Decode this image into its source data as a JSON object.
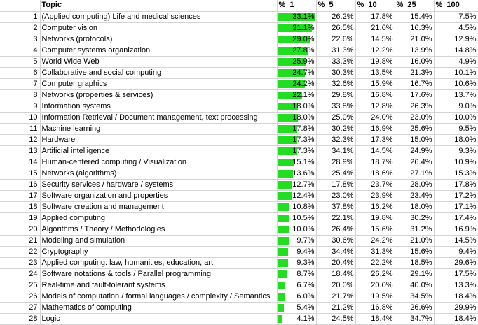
{
  "columns": [
    "Topic",
    "%_1",
    "%_5",
    "%_10",
    "%_25",
    "%_100"
  ],
  "bar_color": "#22dd22",
  "bar_max": 33.1,
  "rows": [
    {
      "n": "1",
      "topic": "(Applied computing) Life and medical sciences",
      "p1": 33.1,
      "v": [
        "33.1%",
        "26.2%",
        "17.8%",
        "15.4%",
        "7.5%"
      ]
    },
    {
      "n": "2",
      "topic": "Computer vision",
      "p1": 31.1,
      "v": [
        "31.1%",
        "26.5%",
        "21.6%",
        "16.3%",
        "4.5%"
      ]
    },
    {
      "n": "3",
      "topic": "Networks (protocols)",
      "p1": 29.0,
      "v": [
        "29.0%",
        "22.6%",
        "14.5%",
        "21.0%",
        "12.9%"
      ]
    },
    {
      "n": "4",
      "topic": "Computer systems organization",
      "p1": 27.8,
      "v": [
        "27.8%",
        "31.3%",
        "12.2%",
        "13.9%",
        "14.8%"
      ]
    },
    {
      "n": "5",
      "topic": "World Wide Web",
      "p1": 25.9,
      "v": [
        "25.9%",
        "33.3%",
        "19.8%",
        "16.0%",
        "4.9%"
      ]
    },
    {
      "n": "6",
      "topic": "Collaborative and social computing",
      "p1": 24.7,
      "v": [
        "24.7%",
        "30.3%",
        "13.5%",
        "21.3%",
        "10.1%"
      ]
    },
    {
      "n": "7",
      "topic": "Computer graphics",
      "p1": 24.2,
      "v": [
        "24.2%",
        "32.6%",
        "15.9%",
        "16.7%",
        "10.6%"
      ]
    },
    {
      "n": "8",
      "topic": "Networks (properties & services)",
      "p1": 22.1,
      "v": [
        "22.1%",
        "29.8%",
        "16.8%",
        "17.6%",
        "13.7%"
      ]
    },
    {
      "n": "9",
      "topic": "Information systems",
      "p1": 18.0,
      "v": [
        "18.0%",
        "33.8%",
        "12.8%",
        "26.3%",
        "9.0%"
      ]
    },
    {
      "n": "10",
      "topic": "Information Retrieval / Document management, text processing",
      "p1": 18.0,
      "v": [
        "18.0%",
        "25.0%",
        "24.0%",
        "23.0%",
        "10.0%"
      ]
    },
    {
      "n": "11",
      "topic": "Machine learning",
      "p1": 17.8,
      "v": [
        "17.8%",
        "30.2%",
        "16.9%",
        "25.6%",
        "9.5%"
      ]
    },
    {
      "n": "12",
      "topic": "Hardware",
      "p1": 17.3,
      "v": [
        "17.3%",
        "32.3%",
        "17.3%",
        "15.0%",
        "18.0%"
      ]
    },
    {
      "n": "13",
      "topic": "Artificial intelligence",
      "p1": 17.3,
      "v": [
        "17.3%",
        "34.1%",
        "14.5%",
        "24.9%",
        "9.3%"
      ]
    },
    {
      "n": "14",
      "topic": "Human-centered computing / Visualization",
      "p1": 15.1,
      "v": [
        "15.1%",
        "28.9%",
        "18.7%",
        "26.4%",
        "10.9%"
      ]
    },
    {
      "n": "15",
      "topic": "Networks (algorithms)",
      "p1": 13.6,
      "v": [
        "13.6%",
        "25.4%",
        "18.6%",
        "27.1%",
        "15.3%"
      ]
    },
    {
      "n": "16",
      "topic": "Security services / hardware / systems",
      "p1": 12.7,
      "v": [
        "12.7%",
        "17.8%",
        "23.7%",
        "28.0%",
        "17.8%"
      ]
    },
    {
      "n": "17",
      "topic": "Software organization and properties",
      "p1": 12.4,
      "v": [
        "12.4%",
        "23.0%",
        "23.9%",
        "23.4%",
        "17.2%"
      ]
    },
    {
      "n": "18",
      "topic": "Software creation and management",
      "p1": 10.8,
      "v": [
        "10.8%",
        "37.8%",
        "16.2%",
        "18.0%",
        "17.1%"
      ]
    },
    {
      "n": "19",
      "topic": "Applied computing",
      "p1": 10.5,
      "v": [
        "10.5%",
        "22.1%",
        "19.8%",
        "30.2%",
        "17.4%"
      ]
    },
    {
      "n": "20",
      "topic": "Algorithms / Theory / Methodologies",
      "p1": 10.0,
      "v": [
        "10.0%",
        "26.4%",
        "15.6%",
        "31.2%",
        "16.9%"
      ]
    },
    {
      "n": "21",
      "topic": "Modeling and simulation",
      "p1": 9.7,
      "v": [
        "9.7%",
        "30.6%",
        "24.2%",
        "21.0%",
        "14.5%"
      ]
    },
    {
      "n": "22",
      "topic": "Cryptography",
      "p1": 9.4,
      "v": [
        "9.4%",
        "34.4%",
        "31.3%",
        "15.6%",
        "9.4%"
      ]
    },
    {
      "n": "23",
      "topic": "Applied computing: law, humanities, education, art",
      "p1": 9.3,
      "v": [
        "9.3%",
        "20.4%",
        "22.2%",
        "18.5%",
        "29.6%"
      ]
    },
    {
      "n": "24",
      "topic": "Software notations & tools / Parallel programming",
      "p1": 8.7,
      "v": [
        "8.7%",
        "18.4%",
        "26.2%",
        "29.1%",
        "17.5%"
      ]
    },
    {
      "n": "25",
      "topic": "Real-time and fault-tolerant systems",
      "p1": 6.7,
      "v": [
        "6.7%",
        "20.0%",
        "20.0%",
        "40.0%",
        "13.3%"
      ]
    },
    {
      "n": "26",
      "topic": "Models of computation / formal languages / complexity / Semantics",
      "p1": 6.0,
      "v": [
        "6.0%",
        "21.7%",
        "19.5%",
        "34.5%",
        "18.4%"
      ]
    },
    {
      "n": "27",
      "topic": "Mathematics of computing",
      "p1": 5.4,
      "v": [
        "5.4%",
        "21.2%",
        "16.8%",
        "26.6%",
        "29.9%"
      ]
    },
    {
      "n": "28",
      "topic": "Logic",
      "p1": 4.1,
      "v": [
        "4.1%",
        "24.5%",
        "18.4%",
        "34.7%",
        "18.4%"
      ]
    }
  ]
}
